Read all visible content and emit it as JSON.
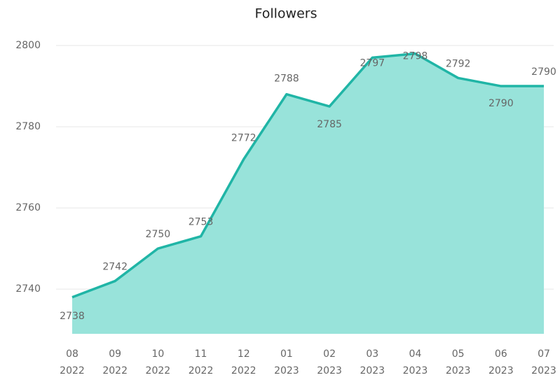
{
  "chart_data": {
    "type": "area",
    "title": "Followers",
    "categories": [
      [
        "08",
        "2022"
      ],
      [
        "09",
        "2022"
      ],
      [
        "10",
        "2022"
      ],
      [
        "11",
        "2022"
      ],
      [
        "12",
        "2022"
      ],
      [
        "01",
        "2023"
      ],
      [
        "02",
        "2023"
      ],
      [
        "03",
        "2023"
      ],
      [
        "04",
        "2023"
      ],
      [
        "05",
        "2023"
      ],
      [
        "06",
        "2023"
      ],
      [
        "07",
        "2023"
      ]
    ],
    "series": [
      {
        "name": "Followers",
        "color": "#20b5a6",
        "fill": "#98e3da",
        "values": [
          2738,
          2742,
          2750,
          2753,
          2772,
          2788,
          2785,
          2797,
          2798,
          2792,
          2790,
          2790
        ]
      }
    ],
    "ylim": [
      2729,
      2804
    ],
    "yticks": [
      2740,
      2760,
      2780,
      2800
    ],
    "grid": true
  }
}
